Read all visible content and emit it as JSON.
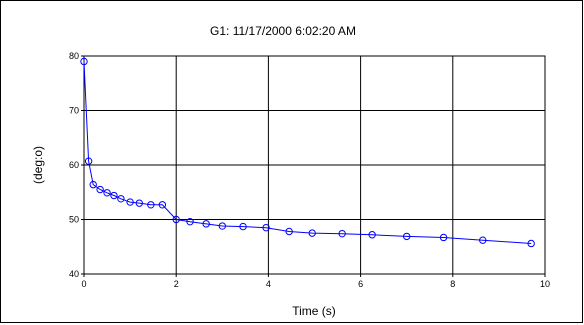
{
  "chart_data": {
    "type": "line",
    "title": "G1:  11/17/2000 6:02:20 AM",
    "xlabel": "Time (s)",
    "ylabel": "(deg:o)",
    "xlim": [
      0,
      10
    ],
    "ylim": [
      40,
      80
    ],
    "x_ticks": [
      "0",
      "2",
      "4",
      "6",
      "8",
      "10"
    ],
    "y_ticks": [
      "40",
      "50",
      "60",
      "70",
      "80"
    ],
    "grid": true,
    "legend": "none",
    "series": [
      {
        "color": "#0000ff",
        "marker": "open-circle",
        "x": [
          0.0,
          0.1,
          0.2,
          0.35,
          0.5,
          0.65,
          0.8,
          1.0,
          1.2,
          1.45,
          1.7,
          2.0,
          2.3,
          2.65,
          3.0,
          3.45,
          3.95,
          4.45,
          4.95,
          5.6,
          6.25,
          7.0,
          7.8,
          8.65,
          9.7
        ],
        "y": [
          79.0,
          60.7,
          56.4,
          55.5,
          54.9,
          54.4,
          53.8,
          53.2,
          53.0,
          52.7,
          52.7,
          50.0,
          49.6,
          49.2,
          48.8,
          48.7,
          48.5,
          47.8,
          47.5,
          47.4,
          47.2,
          46.9,
          46.7,
          46.2,
          45.6
        ]
      }
    ]
  }
}
